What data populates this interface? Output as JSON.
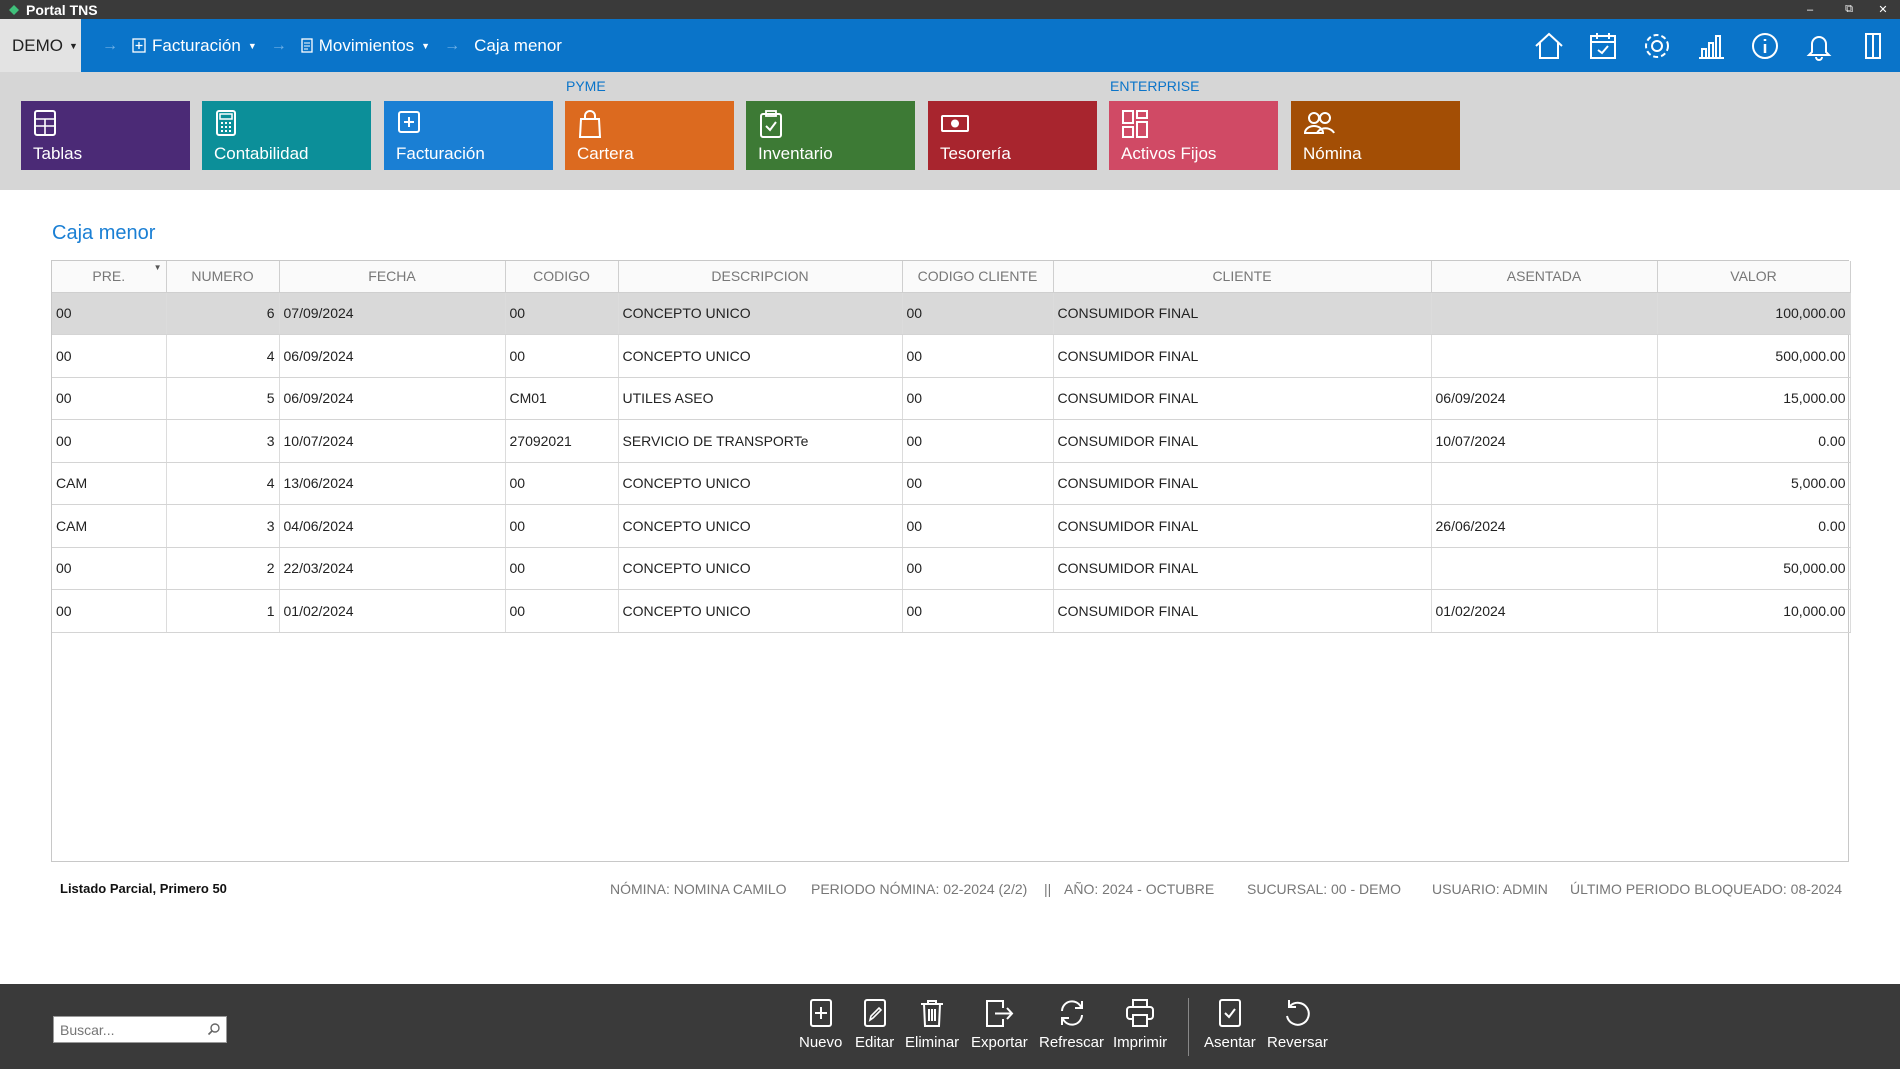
{
  "window": {
    "title": "Portal TNS",
    "controls": [
      "–",
      "⧉",
      "✕"
    ]
  },
  "nav": {
    "company": "DEMO",
    "breadcrumbs": [
      "Facturación",
      "Movimientos",
      "Caja menor"
    ]
  },
  "modules": {
    "group_labels": [
      "PYME",
      "ENTERPRISE"
    ],
    "tiles": [
      {
        "label": "Tablas",
        "color": "#4b2a76"
      },
      {
        "label": "Contabilidad",
        "color": "#0c8f99"
      },
      {
        "label": "Facturación",
        "color": "#1a7fd4"
      },
      {
        "label": "Cartera",
        "color": "#dc6a1f"
      },
      {
        "label": "Inventario",
        "color": "#3d7a35"
      },
      {
        "label": "Tesorería",
        "color": "#a8252e"
      },
      {
        "label": "Activos Fijos",
        "color": "#d04a65"
      },
      {
        "label": "Nómina",
        "color": "#a34e05"
      }
    ]
  },
  "page": {
    "title": "Caja menor"
  },
  "table": {
    "columns": [
      "PRE.",
      "NUMERO",
      "FECHA",
      "CODIGO",
      "DESCRIPCION",
      "CODIGO CLIENTE",
      "CLIENTE",
      "ASENTADA",
      "VALOR"
    ],
    "rows": [
      [
        "00",
        "6",
        "07/09/2024",
        "00",
        "CONCEPTO UNICO",
        "00",
        "CONSUMIDOR FINAL",
        "",
        "100,000.00"
      ],
      [
        "00",
        "4",
        "06/09/2024",
        "00",
        "CONCEPTO UNICO",
        "00",
        "CONSUMIDOR FINAL",
        "",
        "500,000.00"
      ],
      [
        "00",
        "5",
        "06/09/2024",
        "CM01",
        "UTILES ASEO",
        "00",
        "CONSUMIDOR FINAL",
        "06/09/2024",
        "15,000.00"
      ],
      [
        "00",
        "3",
        "10/07/2024",
        "27092021",
        "SERVICIO DE TRANSPORTe",
        "00",
        "CONSUMIDOR FINAL",
        "10/07/2024",
        "0.00"
      ],
      [
        "CAM",
        "4",
        "13/06/2024",
        "00",
        "CONCEPTO UNICO",
        "00",
        "CONSUMIDOR FINAL",
        "",
        "5,000.00"
      ],
      [
        "CAM",
        "3",
        "04/06/2024",
        "00",
        "CONCEPTO UNICO",
        "00",
        "CONSUMIDOR FINAL",
        "26/06/2024",
        "0.00"
      ],
      [
        "00",
        "2",
        "22/03/2024",
        "00",
        "CONCEPTO UNICO",
        "00",
        "CONSUMIDOR FINAL",
        "",
        "50,000.00"
      ],
      [
        "00",
        "1",
        "01/02/2024",
        "00",
        "CONCEPTO UNICO",
        "00",
        "CONSUMIDOR FINAL",
        "01/02/2024",
        "10,000.00"
      ]
    ]
  },
  "status": {
    "listing": "Listado Parcial, Primero 50",
    "nomina": "NÓMINA: NOMINA CAMILO",
    "periodo": "PERIODO NÓMINA: 02-2024 (2/2)",
    "separator": "||",
    "anio": "AÑO: 2024 - OCTUBRE",
    "sucursal": "SUCURSAL: 00 - DEMO",
    "usuario": "USUARIO: ADMIN",
    "bloqueado": "ÚLTIMO PERIODO BLOQUEADO: 08-2024"
  },
  "toolbar": {
    "search_placeholder": "Buscar...",
    "buttons": [
      "Nuevo",
      "Editar",
      "Eliminar",
      "Exportar",
      "Refrescar",
      "Imprimir",
      "Asentar",
      "Reversar"
    ]
  }
}
